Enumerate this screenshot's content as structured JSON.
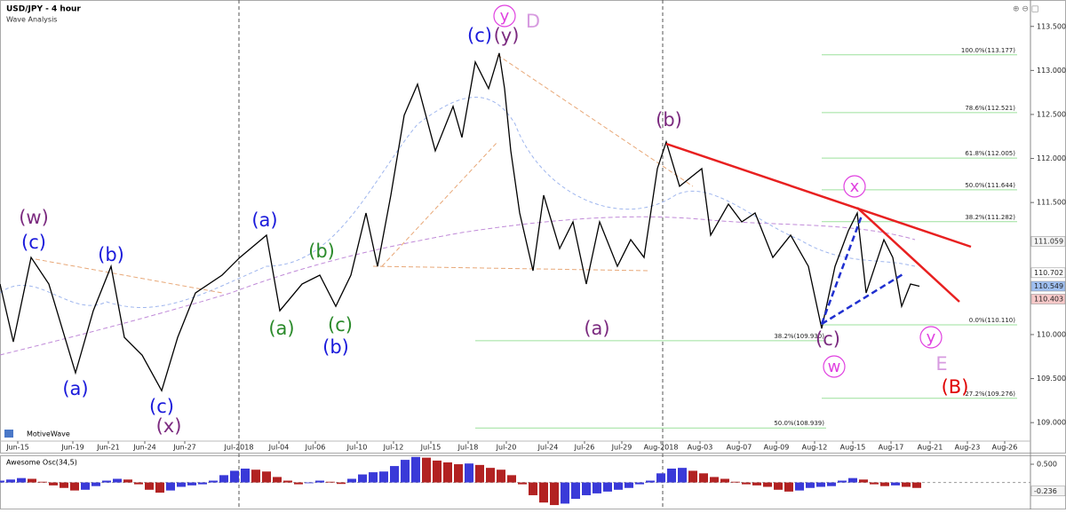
{
  "chart_data": [
    {
      "type": "line",
      "title": "USD/JPY - 4 hour",
      "subtitle": "Wave Analysis",
      "footer": "MotiveWave",
      "color": "#000000",
      "x": [
        0,
        3.75,
        8.75,
        13.75,
        21.25,
        26.25,
        31.25,
        35,
        40,
        45.5,
        50,
        55,
        62.5,
        67.5,
        75,
        78.75,
        85,
        90,
        94.5,
        98.75,
        103,
        106.25,
        110,
        113.75,
        117.5,
        122.5,
        127.5,
        130,
        133.75,
        137.5,
        140.5,
        142,
        143.75,
        146.25,
        150,
        153,
        157.5,
        161.25,
        165,
        168.75,
        173.75,
        177.5,
        181.25,
        185,
        187.5,
        191.25,
        197.5,
        200,
        205,
        208.75,
        212.5,
        217.5,
        222.5,
        227.5,
        231.25,
        235,
        238.75,
        241.25,
        243.75,
        248.75,
        251.25,
        253.75,
        256.25,
        258.75
      ],
      "values": [
        110.574,
        109.918,
        110.876,
        110.574,
        109.565,
        110.271,
        110.775,
        109.968,
        109.766,
        109.363,
        109.968,
        110.473,
        110.675,
        110.876,
        111.129,
        110.271,
        110.574,
        110.675,
        110.321,
        110.675,
        111.381,
        110.775,
        111.583,
        112.491,
        112.844,
        112.087,
        112.592,
        112.239,
        113.096,
        112.794,
        113.197,
        112.794,
        112.087,
        111.381,
        110.725,
        111.583,
        110.977,
        111.28,
        110.574,
        111.28,
        110.775,
        111.078,
        110.876,
        111.885,
        112.188,
        111.684,
        111.885,
        111.129,
        111.482,
        111.28,
        111.381,
        110.876,
        111.129,
        110.775,
        110.069,
        110.775,
        111.179,
        111.381,
        110.473,
        111.078,
        110.876,
        110.321,
        110.574,
        110.549
      ],
      "xlim": [
        0,
        290
      ],
      "xticks": [
        {
          "value": 5,
          "label": "Jun-15"
        },
        {
          "value": 20.5,
          "label": "Jun-19"
        },
        {
          "value": 30.5,
          "label": "Jun-21"
        },
        {
          "value": 40.75,
          "label": "Jun-24"
        },
        {
          "value": 52,
          "label": "Jun-27"
        },
        {
          "value": 67.25,
          "label": "Jul-2018"
        },
        {
          "value": 78.5,
          "label": "Jul-04"
        },
        {
          "value": 88.75,
          "label": "Jul-06"
        },
        {
          "value": 100.5,
          "label": "Jul-10"
        },
        {
          "value": 110.75,
          "label": "Jul-12"
        },
        {
          "value": 121.25,
          "label": "Jul-15"
        },
        {
          "value": 131.75,
          "label": "Jul-18"
        },
        {
          "value": 142.5,
          "label": "Jul-20"
        },
        {
          "value": 154.25,
          "label": "Jul-24"
        },
        {
          "value": 164.5,
          "label": "Jul-26"
        },
        {
          "value": 175,
          "label": "Jul-29"
        },
        {
          "value": 186,
          "label": "Aug-2018"
        },
        {
          "value": 197,
          "label": "Aug-03"
        },
        {
          "value": 208,
          "label": "Aug-07"
        },
        {
          "value": 218.5,
          "label": "Aug-09"
        },
        {
          "value": 229.25,
          "label": "Aug-12"
        },
        {
          "value": 240,
          "label": "Aug-15"
        },
        {
          "value": 250.75,
          "label": "Aug-17"
        },
        {
          "value": 261.75,
          "label": "Aug-21"
        },
        {
          "value": 272.25,
          "label": "Aug-23"
        },
        {
          "value": 282.75,
          "label": "Aug-26"
        }
      ],
      "ylim": [
        108.79,
        113.8
      ],
      "yticks": [
        {
          "value": 113.5,
          "label": "113.500"
        },
        {
          "value": 113,
          "label": "113.000"
        },
        {
          "value": 112.5,
          "label": "112.500"
        },
        {
          "value": 112,
          "label": "112.000"
        },
        {
          "value": 111.5,
          "label": "111.500"
        },
        {
          "value": 110,
          "label": "110.000"
        },
        {
          "value": 109.5,
          "label": "109.500"
        },
        {
          "value": 109,
          "label": "109.000"
        }
      ],
      "price_markers": [
        {
          "value": 111.059,
          "label": "111.059",
          "color": "#f4f4f4",
          "text_color": "#000000"
        },
        {
          "value": 110.702,
          "label": "110.702",
          "color": "#ffffff",
          "text_color": "#000000"
        },
        {
          "value": 110.549,
          "label": "110.549",
          "color": "#9fbff0",
          "text_color": "#0a2a80"
        },
        {
          "value": 110.403,
          "label": "110.403",
          "color": "#f6c8c8",
          "text_color": "#a00000"
        }
      ],
      "fib_levels": [
        {
          "value": 113.177,
          "label": "100.0%(113.177)",
          "from": 231.25,
          "to": 286.25
        },
        {
          "value": 112.521,
          "label": "78.6%(112.521)",
          "from": 231.25,
          "to": 286.25
        },
        {
          "value": 112.005,
          "label": "61.8%(112.005)",
          "from": 231.25,
          "to": 286.25
        },
        {
          "value": 111.644,
          "label": "50.0%(111.644)",
          "from": 231.25,
          "to": 286.25
        },
        {
          "value": 111.282,
          "label": "38.2%(111.282)",
          "from": 231.25,
          "to": 286.25
        },
        {
          "value": 110.11,
          "label": "0.0%(110.110)",
          "from": 231.25,
          "to": 286.25
        },
        {
          "value": 109.276,
          "label": "-27.2%(109.276)",
          "from": 231.25,
          "to": 286.25
        },
        {
          "value": 109.93,
          "label": "38.2%(109.930)",
          "from": 133.75,
          "to": 232.5
        },
        {
          "value": 108.939,
          "label": "50.0%(108.939)",
          "from": 133.75,
          "to": 232.5
        }
      ],
      "annotations": [
        {
          "text": "(w)",
          "color": "#7b2a7f"
        },
        {
          "text": "(c)",
          "color": "#1a1adb"
        },
        {
          "text": "(b)",
          "color": "#1a1adb"
        },
        {
          "text": "(a)",
          "color": "#1a1adb"
        },
        {
          "text": "(c)",
          "color": "#1a1adb"
        },
        {
          "text": "(x)",
          "color": "#7b2a7f"
        },
        {
          "text": "(a)",
          "color": "#1a1adb"
        },
        {
          "text": "(b)",
          "color": "#2a8a2a"
        },
        {
          "text": "(a)",
          "color": "#2a8a2a"
        },
        {
          "text": "(c)",
          "color": "#2a8a2a"
        },
        {
          "text": "(b)",
          "color": "#1a1adb"
        },
        {
          "text": "(c)",
          "color": "#1a1adb"
        },
        {
          "text": "(y)",
          "color": "#7b2a7f"
        },
        {
          "text": "y",
          "color": "#e040e0",
          "circled": true
        },
        {
          "text": "D",
          "color": "#d79be0"
        },
        {
          "text": "(b)",
          "color": "#7b2a7f"
        },
        {
          "text": "(a)",
          "color": "#7b2a7f"
        },
        {
          "text": "x",
          "color": "#e040e0",
          "circled": true
        },
        {
          "text": "(c)",
          "color": "#7b2a7f"
        },
        {
          "text": "w",
          "color": "#e040e0",
          "circled": true
        },
        {
          "text": "y",
          "color": "#e040e0",
          "circled": true
        },
        {
          "text": "E",
          "color": "#d79be0"
        },
        {
          "text": "(B)",
          "color": "#e00000"
        }
      ]
    },
    {
      "type": "bar",
      "title": "Awesome Osc(34,5)",
      "up_color": "#3a3ad8",
      "down_color": "#b22222",
      "x": [
        0,
        3,
        6,
        9,
        12,
        15,
        18,
        21,
        24,
        27,
        30,
        33,
        36,
        39,
        42,
        45,
        48,
        51,
        54,
        57,
        60,
        63,
        66,
        69,
        72,
        75,
        78,
        81,
        84,
        87,
        90,
        93,
        96,
        99,
        102,
        105,
        108,
        111,
        114,
        117,
        120,
        123,
        126,
        129,
        132,
        135,
        138,
        141,
        144,
        147,
        150,
        153,
        156,
        159,
        162,
        165,
        168,
        171,
        174,
        177,
        180,
        183,
        186,
        189,
        192,
        195,
        198,
        201,
        204,
        207,
        210,
        213,
        216,
        219,
        222,
        225,
        228,
        231,
        234,
        237,
        240,
        243,
        246,
        249,
        252,
        255,
        258
      ],
      "values": [
        0.05,
        0.08,
        0.12,
        0.1,
        0.02,
        -0.08,
        -0.15,
        -0.22,
        -0.2,
        -0.1,
        0.05,
        0.1,
        0.08,
        -0.05,
        -0.2,
        -0.28,
        -0.22,
        -0.12,
        -0.08,
        -0.05,
        0.05,
        0.2,
        0.32,
        0.38,
        0.35,
        0.3,
        0.15,
        0.05,
        -0.05,
        -0.02,
        0.05,
        0.02,
        -0.04,
        0.1,
        0.22,
        0.28,
        0.3,
        0.45,
        0.62,
        0.7,
        0.68,
        0.6,
        0.55,
        0.5,
        0.52,
        0.48,
        0.4,
        0.35,
        0.2,
        -0.05,
        -0.35,
        -0.55,
        -0.62,
        -0.58,
        -0.45,
        -0.35,
        -0.3,
        -0.25,
        -0.2,
        -0.15,
        -0.05,
        0.05,
        0.25,
        0.38,
        0.4,
        0.32,
        0.25,
        0.15,
        0.1,
        0.02,
        -0.05,
        -0.08,
        -0.12,
        -0.2,
        -0.25,
        -0.22,
        -0.15,
        -0.12,
        -0.1,
        0.05,
        0.12,
        0.08,
        -0.05,
        -0.1,
        -0.08,
        -0.12,
        -0.15
      ],
      "xlim": [
        0,
        290
      ],
      "ylim": [
        -0.74,
        0.72
      ],
      "yticks": [
        {
          "value": 0.5,
          "label": "0.500"
        }
      ],
      "price_markers": [
        {
          "value": -0.236,
          "label": "-0.236",
          "color": "#f4f4f4",
          "text_color": "#000000"
        }
      ]
    }
  ]
}
